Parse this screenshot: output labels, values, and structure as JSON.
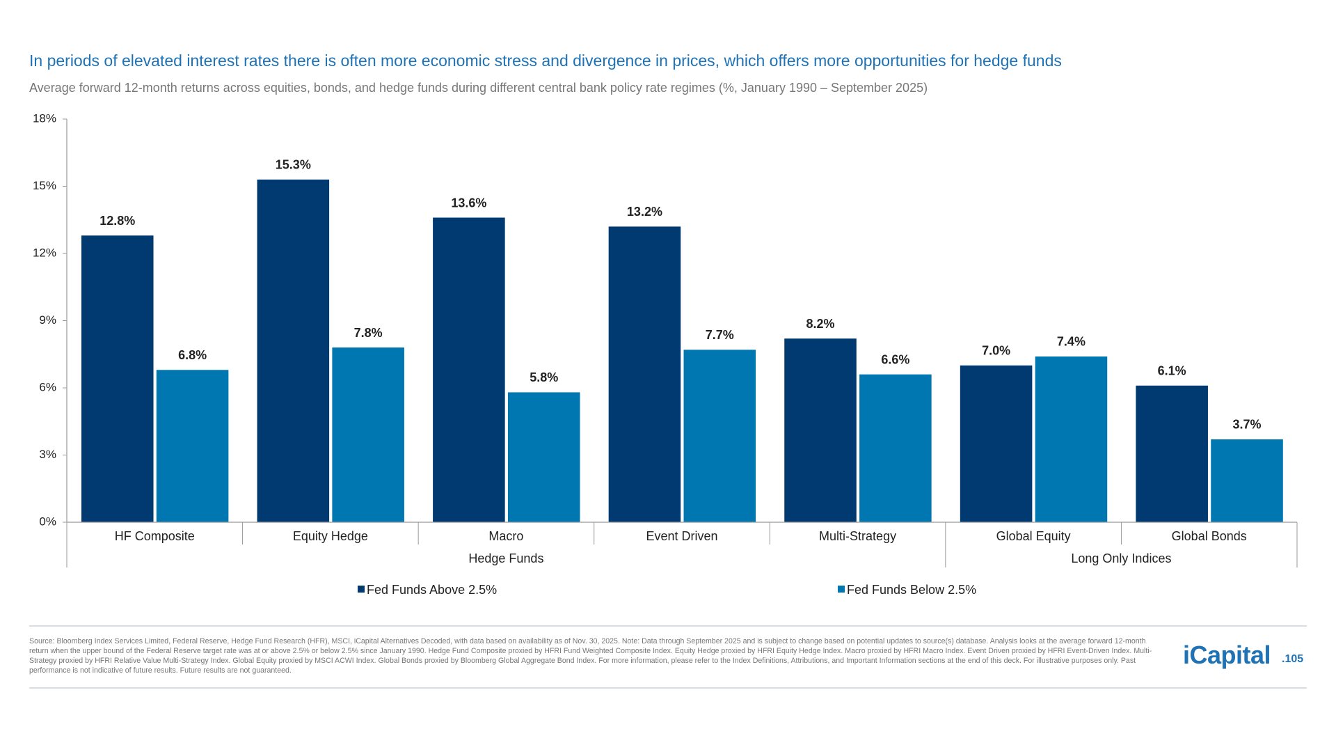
{
  "chart_data": {
    "type": "bar",
    "title": "In periods of elevated interest rates there is often more economic stress and divergence in prices, which offers more opportunities for hedge funds",
    "subtitle": "Average forward 12-month returns across equities, bonds, and hedge funds during different central bank policy rate regimes (%, January 1990 – September 2025)",
    "groups": [
      {
        "name": "Hedge Funds",
        "categories": [
          "HF Composite",
          "Equity Hedge",
          "Macro",
          "Event Driven",
          "Multi-Strategy"
        ]
      },
      {
        "name": "Long Only Indices",
        "categories": [
          "Global Equity",
          "Global Bonds"
        ]
      }
    ],
    "series": [
      {
        "name": "Fed Funds Above 2.5%",
        "color": "#003a70",
        "values": [
          12.8,
          15.3,
          13.6,
          13.2,
          8.2,
          7.0,
          6.1
        ],
        "value_labels": [
          "12.8%",
          "15.3%",
          "13.6%",
          "13.2%",
          "8.2%",
          "7.0%",
          "6.1%"
        ]
      },
      {
        "name": "Fed Funds Below 2.5%",
        "color": "#0077b0",
        "values": [
          6.8,
          7.8,
          5.8,
          7.7,
          6.6,
          7.4,
          3.7
        ],
        "value_labels": [
          "6.8%",
          "7.8%",
          "5.8%",
          "7.7%",
          "6.6%",
          "7.4%",
          "3.7%"
        ]
      }
    ],
    "ylim": [
      0,
      18
    ],
    "yticks": [
      {
        "value": 0,
        "label": "0%"
      },
      {
        "value": 3,
        "label": "3%"
      },
      {
        "value": 6,
        "label": "6%"
      },
      {
        "value": 9,
        "label": "9%"
      },
      {
        "value": 12,
        "label": "12%"
      },
      {
        "value": 15,
        "label": "15%"
      },
      {
        "value": 18,
        "label": "18%"
      }
    ]
  },
  "footer": {
    "source": "Source: Bloomberg Index Services Limited, Federal Reserve, Hedge Fund Research (HFR), MSCI, iCapital Alternatives Decoded, with data based on availability as of Nov. 30, 2025. Note: Data through September 2025 and is subject to change based on potential updates to source(s) database. Analysis looks at the average forward 12-month return when the upper bound of the Federal Reserve target rate was at or above 2.5% or below 2.5% since January 1990. Hedge Fund Composite proxied by HFRI Fund Weighted Composite Index. Equity Hedge proxied by HFRI Equity Hedge Index. Macro proxied by HFRI Macro Index. Event Driven proxied by HFRI Event-Driven Index. Multi-Strategy proxied by HFRI Relative Value Multi-Strategy Index. Global Equity proxied by MSCI ACWI Index. Global Bonds proxied by Bloomberg Global Aggregate Bond Index. For more information, please refer to the Index Definitions, Attributions, and Important Information sections at the end of this deck. For illustrative purposes only. Past performance is not indicative of future results. Future results are not guaranteed.",
    "logo": "iCapital",
    "page": ".105"
  }
}
